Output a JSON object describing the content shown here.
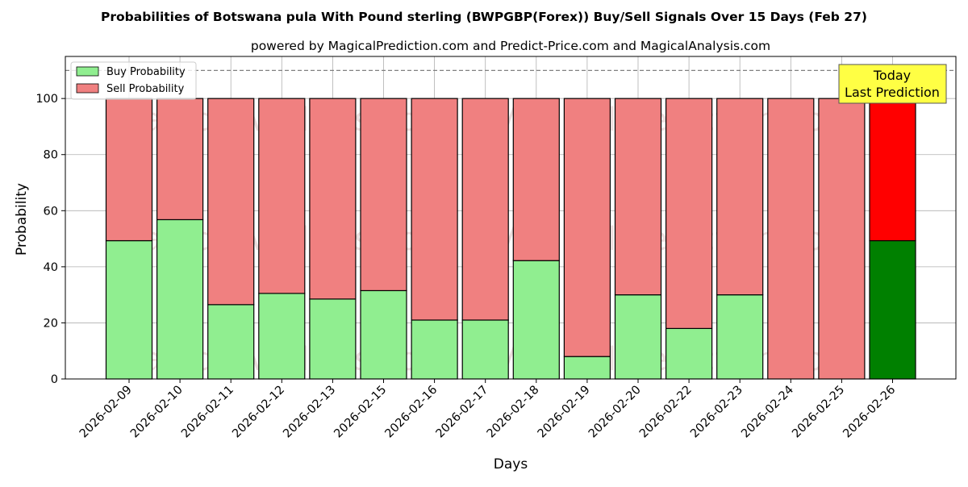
{
  "chart_data": {
    "type": "bar",
    "title": "Probabilities of Botswana pula With Pound sterling (BWPGBP(Forex)) Buy/Sell Signals Over 15 Days (Feb 27)",
    "subtitle": "powered by MagicalPrediction.com and Predict-Price.com and MagicalAnalysis.com",
    "xlabel": "Days",
    "ylabel": "Probability",
    "ylim": [
      0,
      115
    ],
    "yticks": [
      0,
      20,
      40,
      60,
      80,
      100
    ],
    "reference_line": 110,
    "grid": true,
    "legend_position": "top-left",
    "categories": [
      "2026-02-09",
      "2026-02-10",
      "2026-02-11",
      "2026-02-12",
      "2026-02-13",
      "2026-02-15",
      "2026-02-16",
      "2026-02-17",
      "2026-02-18",
      "2026-02-19",
      "2026-02-20",
      "2026-02-22",
      "2026-02-23",
      "2026-02-24",
      "2026-02-25",
      "2026-02-26"
    ],
    "series": [
      {
        "name": "Buy Probability",
        "color": "#90ee90",
        "highlight_color": "#008000",
        "values": [
          49.3,
          56.8,
          26.5,
          30.5,
          28.5,
          31.5,
          21,
          21,
          42.2,
          8,
          30,
          18,
          30,
          0,
          0,
          49.3
        ]
      },
      {
        "name": "Sell Probability",
        "color": "#f08080",
        "highlight_color": "#ff0000",
        "values": [
          50.7,
          43.2,
          73.5,
          69.5,
          71.5,
          68.5,
          79,
          79,
          57.8,
          92,
          70,
          82,
          70,
          100,
          100,
          50.7
        ]
      }
    ],
    "highlight_index": 15,
    "annotation": {
      "lines": [
        "Today",
        "Last Prediction"
      ],
      "color": "#ffff44"
    },
    "watermarks": [
      "MagicalAnalysis.com",
      "MagicalPrediction.com"
    ]
  }
}
